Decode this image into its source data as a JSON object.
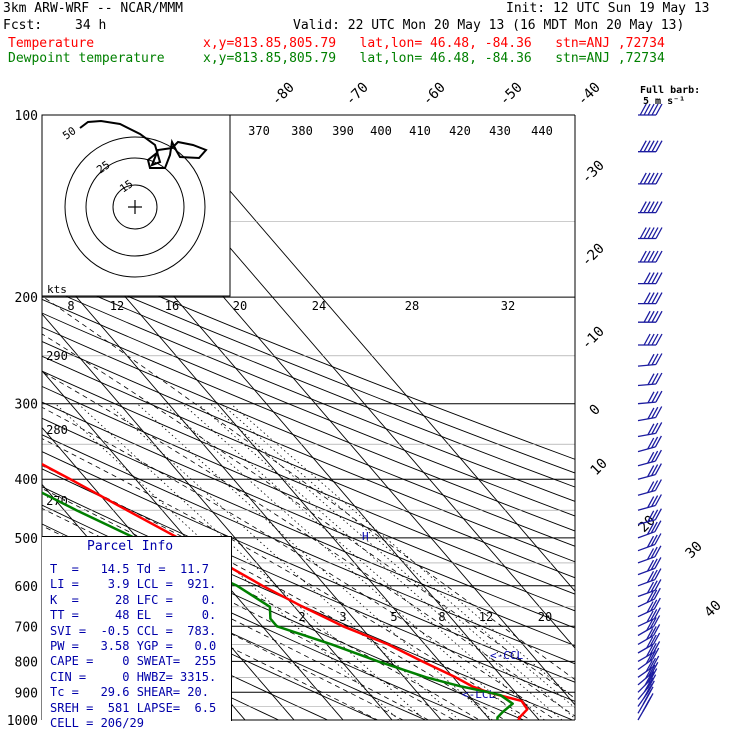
{
  "header": {
    "model": "3km ARW-WRF -- NCAR/MMM",
    "init": "Init: 12 UTC Sun 19 May 13",
    "fcst_label": "Fcst:",
    "fcst_value": "34 h",
    "valid": "Valid: 22 UTC Mon 20 May 13 (16 MDT Mon 20 May 13)",
    "temp_label": "Temperature",
    "temp_loc": "x,y=813.85,805.79   lat,lon= 46.48, -84.36   stn=ANJ ,72734",
    "dew_label": "Dewpoint temperature",
    "dew_loc": "x,y=813.85,805.79   lat,lon= 46.48, -84.36   stn=ANJ ,72734",
    "barb_legend_line1": "Full barb:",
    "barb_legend_line2": "5 m s⁻¹"
  },
  "colors": {
    "temperature": "#ff0000",
    "dewpoint": "#008000",
    "text_blue": "#0000aa",
    "barb": "#1c1ca0"
  },
  "parcel_info": {
    "title": "Parcel Info",
    "rows": [
      "T  =   14.5 Td =  11.7",
      "LI =    3.9 LCL =  921.",
      "K  =     28 LFC =    0.",
      "TT =     48 EL  =    0.",
      "SVI =  -0.5 CCL =  783.",
      "PW =   3.58 YGP =   0.0",
      "CAPE =    0 SWEAT=  255",
      "CIN =     0 HWBZ= 3315.",
      "Tc =   29.6 SHEAR= 20.",
      "SREH =  581 LAPSE=  6.5",
      "CELL = 206/29"
    ]
  },
  "hodograph": {
    "label": "kts",
    "rings": [
      "50",
      "25",
      "15"
    ]
  },
  "chart_data": {
    "type": "line",
    "title": "",
    "xlabel": "",
    "ylabel": "",
    "pressure_levels": [
      100,
      200,
      300,
      400,
      500,
      600,
      700,
      800,
      900,
      1000
    ],
    "pressure_labels": [
      "100",
      "200",
      "300",
      "400",
      "500",
      "600",
      "700",
      "800",
      "900",
      "1000"
    ],
    "isotherm_labels": [
      "-80",
      "-70",
      "-60",
      "-50",
      "-40",
      "-30",
      "-20",
      "-10",
      "0",
      "10",
      "20",
      "30",
      "40"
    ],
    "theta_labels": [
      "370",
      "380",
      "390",
      "400",
      "410",
      "420",
      "430",
      "440",
      "290",
      "280",
      "270"
    ],
    "mixing_ratio_top": [
      "8",
      "12",
      "16",
      "20",
      "24",
      "28",
      "32"
    ],
    "mixing_ratio_low": [
      "2",
      "3",
      "5",
      "8",
      "12",
      "20"
    ],
    "annotations": [
      "<-CCL",
      "<-LCL",
      "H"
    ],
    "series": [
      {
        "name": "Temperature",
        "pressure": [
          1000,
          990,
          960,
          930,
          900,
          880,
          850,
          800,
          750,
          700,
          650,
          600,
          550,
          500,
          450,
          400,
          350,
          300,
          250,
          200,
          175,
          160,
          150,
          140,
          130,
          120,
          110,
          100
        ],
        "values": [
          15.8,
          16.5,
          19.5,
          19.8,
          14.5,
          12.3,
          10.5,
          6.5,
          2.5,
          -3.5,
          -8.3,
          -12.8,
          -17.0,
          -21.6,
          -27.2,
          -33.3,
          -40.6,
          -48.5,
          -57.5,
          -65.5,
          -68.7,
          -66.5,
          -60.0,
          -53.0,
          -50.0,
          -49.0,
          -49.5,
          -49.0
        ]
      },
      {
        "name": "Dewpoint temperature",
        "pressure": [
          1000,
          990,
          970,
          940,
          910,
          900,
          880,
          850,
          800,
          750,
          700,
          680,
          650,
          600,
          550,
          500,
          450,
          400,
          350,
          300,
          250,
          200,
          175,
          160,
          150,
          140,
          130,
          120,
          110,
          100
        ],
        "values": [
          11.5,
          12.0,
          14.0,
          17.5,
          16.5,
          14.6,
          10.0,
          4.5,
          -2.5,
          -9.0,
          -17.0,
          -17.0,
          -15.0,
          -18.0,
          -24.0,
          -30.5,
          -37.5,
          -44.5,
          -53.0,
          -61.5,
          -71.5,
          -81.0,
          -84.5,
          -82.5,
          -78.5,
          -78.0,
          -77.5,
          -77.5,
          -78.0,
          -78.0
        ]
      }
    ],
    "wind_profile": {
      "units": "m s-1",
      "pressure": [
        100,
        115,
        130,
        145,
        160,
        175,
        190,
        205,
        220,
        240,
        260,
        280,
        300,
        320,
        340,
        360,
        380,
        400,
        425,
        450,
        475,
        500,
        525,
        550,
        575,
        600,
        625,
        650,
        675,
        700,
        725,
        750,
        775,
        800,
        825,
        850,
        875,
        900,
        925,
        950,
        975,
        1000
      ],
      "speed": [
        25,
        25,
        25,
        25,
        25,
        25,
        20,
        20,
        20,
        20,
        15,
        15,
        15,
        15,
        15,
        15,
        15,
        15,
        15,
        15,
        15,
        15,
        15,
        15,
        15,
        15,
        15,
        15,
        15,
        15,
        15,
        15,
        15,
        15,
        15,
        15,
        15,
        15,
        15,
        15,
        15,
        15
      ],
      "direction_deg": [
        270,
        270,
        270,
        270,
        270,
        270,
        270,
        270,
        270,
        270,
        275,
        275,
        275,
        280,
        280,
        285,
        285,
        285,
        285,
        285,
        285,
        290,
        290,
        290,
        290,
        290,
        290,
        295,
        295,
        295,
        300,
        300,
        300,
        300,
        305,
        305,
        310,
        315,
        320,
        325,
        330,
        330
      ]
    }
  }
}
